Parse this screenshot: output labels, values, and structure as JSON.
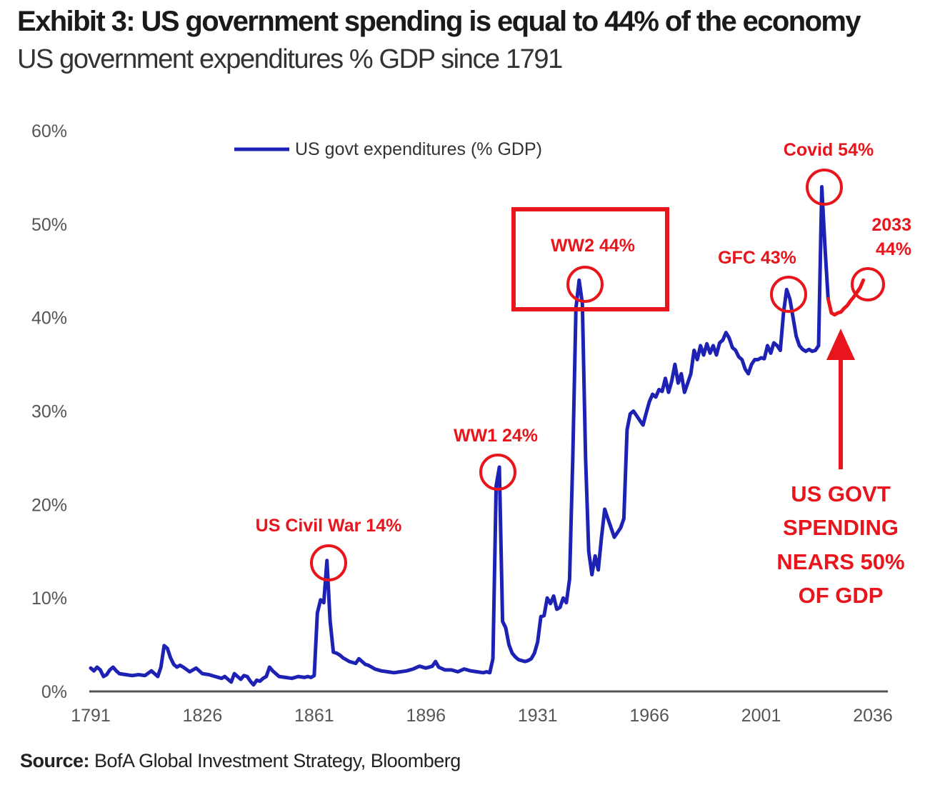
{
  "title": "Exhibit 3: US government spending is equal to 44% of the economy",
  "subtitle": "US government expenditures % GDP since 1791",
  "source": {
    "label": "Source:",
    "text": " BofA Global Investment Strategy, Bloomberg"
  },
  "colors": {
    "series": "#1e22b4",
    "projection": "#e8161c",
    "annotation": "#e8161c",
    "axis": "#555555"
  },
  "chart_data": {
    "type": "line",
    "title": "Exhibit 3: US government spending is equal to 44% of the economy",
    "subtitle": "US government expenditures % GDP since 1791",
    "xlabel": "",
    "ylabel": "",
    "xlim": [
      1791,
      2036
    ],
    "ylim": [
      0,
      60
    ],
    "grid": false,
    "legend_position": "top-center",
    "x_ticks": [
      "1791",
      "1826",
      "1861",
      "1896",
      "1931",
      "1966",
      "2001",
      "2036"
    ],
    "y_ticks": [
      "0%",
      "10%",
      "20%",
      "30%",
      "40%",
      "50%",
      "60%"
    ],
    "series": [
      {
        "name": "US govt expenditures (% GDP)",
        "points": [
          [
            1791,
            2.5
          ],
          [
            1792,
            2.2
          ],
          [
            1793,
            2.6
          ],
          [
            1794,
            2.3
          ],
          [
            1795,
            1.6
          ],
          [
            1796,
            1.8
          ],
          [
            1797,
            2.3
          ],
          [
            1798,
            2.6
          ],
          [
            1799,
            2.2
          ],
          [
            1800,
            1.9
          ],
          [
            1802,
            1.8
          ],
          [
            1804,
            1.7
          ],
          [
            1806,
            1.8
          ],
          [
            1808,
            1.7
          ],
          [
            1810,
            2.2
          ],
          [
            1811,
            1.9
          ],
          [
            1812,
            1.6
          ],
          [
            1813,
            2.6
          ],
          [
            1814,
            4.9
          ],
          [
            1815,
            4.6
          ],
          [
            1816,
            3.6
          ],
          [
            1817,
            2.9
          ],
          [
            1818,
            2.6
          ],
          [
            1819,
            2.8
          ],
          [
            1820,
            2.6
          ],
          [
            1822,
            2.1
          ],
          [
            1824,
            2.5
          ],
          [
            1826,
            1.9
          ],
          [
            1828,
            1.8
          ],
          [
            1830,
            1.6
          ],
          [
            1832,
            1.4
          ],
          [
            1833,
            1.6
          ],
          [
            1834,
            1.3
          ],
          [
            1835,
            1.0
          ],
          [
            1836,
            1.9
          ],
          [
            1837,
            1.6
          ],
          [
            1838,
            1.3
          ],
          [
            1839,
            1.7
          ],
          [
            1840,
            1.6
          ],
          [
            1841,
            1.1
          ],
          [
            1842,
            0.7
          ],
          [
            1843,
            1.2
          ],
          [
            1844,
            1.1
          ],
          [
            1845,
            1.4
          ],
          [
            1846,
            1.6
          ],
          [
            1847,
            2.6
          ],
          [
            1848,
            2.2
          ],
          [
            1849,
            1.9
          ],
          [
            1850,
            1.6
          ],
          [
            1852,
            1.5
          ],
          [
            1854,
            1.4
          ],
          [
            1856,
            1.6
          ],
          [
            1858,
            1.5
          ],
          [
            1859,
            1.6
          ],
          [
            1860,
            1.5
          ],
          [
            1861,
            1.7
          ],
          [
            1862,
            8.4
          ],
          [
            1863,
            9.8
          ],
          [
            1864,
            9.5
          ],
          [
            1865,
            14.0
          ],
          [
            1866,
            7.5
          ],
          [
            1867,
            4.2
          ],
          [
            1868,
            4.1
          ],
          [
            1869,
            3.9
          ],
          [
            1870,
            3.6
          ],
          [
            1871,
            3.4
          ],
          [
            1872,
            3.2
          ],
          [
            1873,
            3.1
          ],
          [
            1874,
            3.0
          ],
          [
            1875,
            3.5
          ],
          [
            1876,
            3.2
          ],
          [
            1877,
            2.9
          ],
          [
            1878,
            2.8
          ],
          [
            1879,
            2.6
          ],
          [
            1880,
            2.4
          ],
          [
            1882,
            2.2
          ],
          [
            1884,
            2.1
          ],
          [
            1886,
            2.0
          ],
          [
            1888,
            2.1
          ],
          [
            1890,
            2.2
          ],
          [
            1892,
            2.4
          ],
          [
            1894,
            2.7
          ],
          [
            1896,
            2.5
          ],
          [
            1898,
            2.7
          ],
          [
            1899,
            3.2
          ],
          [
            1900,
            2.6
          ],
          [
            1902,
            2.3
          ],
          [
            1904,
            2.3
          ],
          [
            1906,
            2.1
          ],
          [
            1908,
            2.4
          ],
          [
            1910,
            2.2
          ],
          [
            1912,
            2.1
          ],
          [
            1914,
            2.0
          ],
          [
            1915,
            2.1
          ],
          [
            1916,
            2.0
          ],
          [
            1917,
            3.5
          ],
          [
            1918,
            22.0
          ],
          [
            1919,
            24.0
          ],
          [
            1920,
            7.5
          ],
          [
            1921,
            6.8
          ],
          [
            1922,
            5.0
          ],
          [
            1923,
            4.1
          ],
          [
            1924,
            3.7
          ],
          [
            1925,
            3.4
          ],
          [
            1926,
            3.3
          ],
          [
            1927,
            3.2
          ],
          [
            1928,
            3.3
          ],
          [
            1929,
            3.5
          ],
          [
            1930,
            4.1
          ],
          [
            1931,
            5.3
          ],
          [
            1932,
            8.0
          ],
          [
            1933,
            8.1
          ],
          [
            1934,
            10.0
          ],
          [
            1935,
            9.4
          ],
          [
            1936,
            10.2
          ],
          [
            1937,
            8.8
          ],
          [
            1938,
            9.0
          ],
          [
            1939,
            10.0
          ],
          [
            1940,
            9.5
          ],
          [
            1941,
            12.0
          ],
          [
            1942,
            25.0
          ],
          [
            1943,
            41.0
          ],
          [
            1944,
            44.0
          ],
          [
            1945,
            41.5
          ],
          [
            1946,
            25.0
          ],
          [
            1947,
            15.0
          ],
          [
            1948,
            12.5
          ],
          [
            1949,
            14.5
          ],
          [
            1950,
            13.0
          ],
          [
            1951,
            16.5
          ],
          [
            1952,
            19.5
          ],
          [
            1953,
            18.5
          ],
          [
            1954,
            17.5
          ],
          [
            1955,
            16.5
          ],
          [
            1956,
            17.0
          ],
          [
            1957,
            17.5
          ],
          [
            1958,
            18.5
          ],
          [
            1959,
            28.0
          ],
          [
            1960,
            29.7
          ],
          [
            1961,
            30.0
          ],
          [
            1962,
            29.5
          ],
          [
            1963,
            29.0
          ],
          [
            1964,
            28.5
          ],
          [
            1965,
            29.8
          ],
          [
            1966,
            31.0
          ],
          [
            1967,
            31.8
          ],
          [
            1968,
            31.5
          ],
          [
            1969,
            32.3
          ],
          [
            1970,
            32.1
          ],
          [
            1971,
            33.5
          ],
          [
            1972,
            32.0
          ],
          [
            1973,
            33.2
          ],
          [
            1974,
            35.0
          ],
          [
            1975,
            33.0
          ],
          [
            1976,
            34.0
          ],
          [
            1977,
            32.0
          ],
          [
            1978,
            33.0
          ],
          [
            1979,
            34.0
          ],
          [
            1980,
            36.5
          ],
          [
            1981,
            35.5
          ],
          [
            1982,
            37.0
          ],
          [
            1983,
            36.0
          ],
          [
            1984,
            37.2
          ],
          [
            1985,
            36.2
          ],
          [
            1986,
            37.0
          ],
          [
            1987,
            36.0
          ],
          [
            1988,
            37.3
          ],
          [
            1989,
            37.6
          ],
          [
            1990,
            38.4
          ],
          [
            1991,
            37.8
          ],
          [
            1992,
            36.8
          ],
          [
            1993,
            36.5
          ],
          [
            1994,
            35.8
          ],
          [
            1995,
            35.5
          ],
          [
            1996,
            34.5
          ],
          [
            1997,
            34.0
          ],
          [
            1998,
            35.0
          ],
          [
            1999,
            35.5
          ],
          [
            2000,
            35.5
          ],
          [
            2001,
            35.7
          ],
          [
            2002,
            35.6
          ],
          [
            2003,
            37.0
          ],
          [
            2004,
            36.2
          ],
          [
            2005,
            37.3
          ],
          [
            2006,
            37.0
          ],
          [
            2007,
            36.5
          ],
          [
            2008,
            40.5
          ],
          [
            2009,
            43.0
          ],
          [
            2010,
            42.0
          ],
          [
            2011,
            40.0
          ],
          [
            2012,
            38.0
          ],
          [
            2013,
            37.0
          ],
          [
            2014,
            36.6
          ],
          [
            2015,
            36.4
          ],
          [
            2016,
            36.6
          ],
          [
            2017,
            36.4
          ],
          [
            2018,
            36.5
          ],
          [
            2019,
            37.0
          ],
          [
            2020,
            54.0
          ],
          [
            2021,
            47.5
          ],
          [
            2022,
            42.0
          ]
        ]
      },
      {
        "role": "projection",
        "points": [
          [
            2022,
            42.0
          ],
          [
            2023,
            40.5
          ],
          [
            2024,
            40.3
          ],
          [
            2025,
            40.5
          ],
          [
            2026,
            40.6
          ],
          [
            2027,
            41.0
          ],
          [
            2028,
            41.3
          ],
          [
            2029,
            41.8
          ],
          [
            2030,
            42.2
          ],
          [
            2031,
            42.7
          ],
          [
            2032,
            43.2
          ],
          [
            2033,
            44.0
          ]
        ]
      }
    ],
    "annotations": [
      {
        "label": "US Civil War 14%",
        "x": 1865,
        "y": 14
      },
      {
        "label": "WW1 24%",
        "x": 1919,
        "y": 24
      },
      {
        "label": "WW2 44%",
        "x": 1944,
        "y": 44
      },
      {
        "label": "GFC 43%",
        "x": 2009,
        "y": 43
      },
      {
        "label": "Covid 54%",
        "x": 2020,
        "y": 54
      },
      {
        "label_line1": "2033",
        "label_line2": "44%",
        "x": 2033,
        "y": 44
      }
    ],
    "callout": [
      "US GOVT",
      "SPENDING",
      "NEARS 50%",
      "OF GDP"
    ]
  }
}
